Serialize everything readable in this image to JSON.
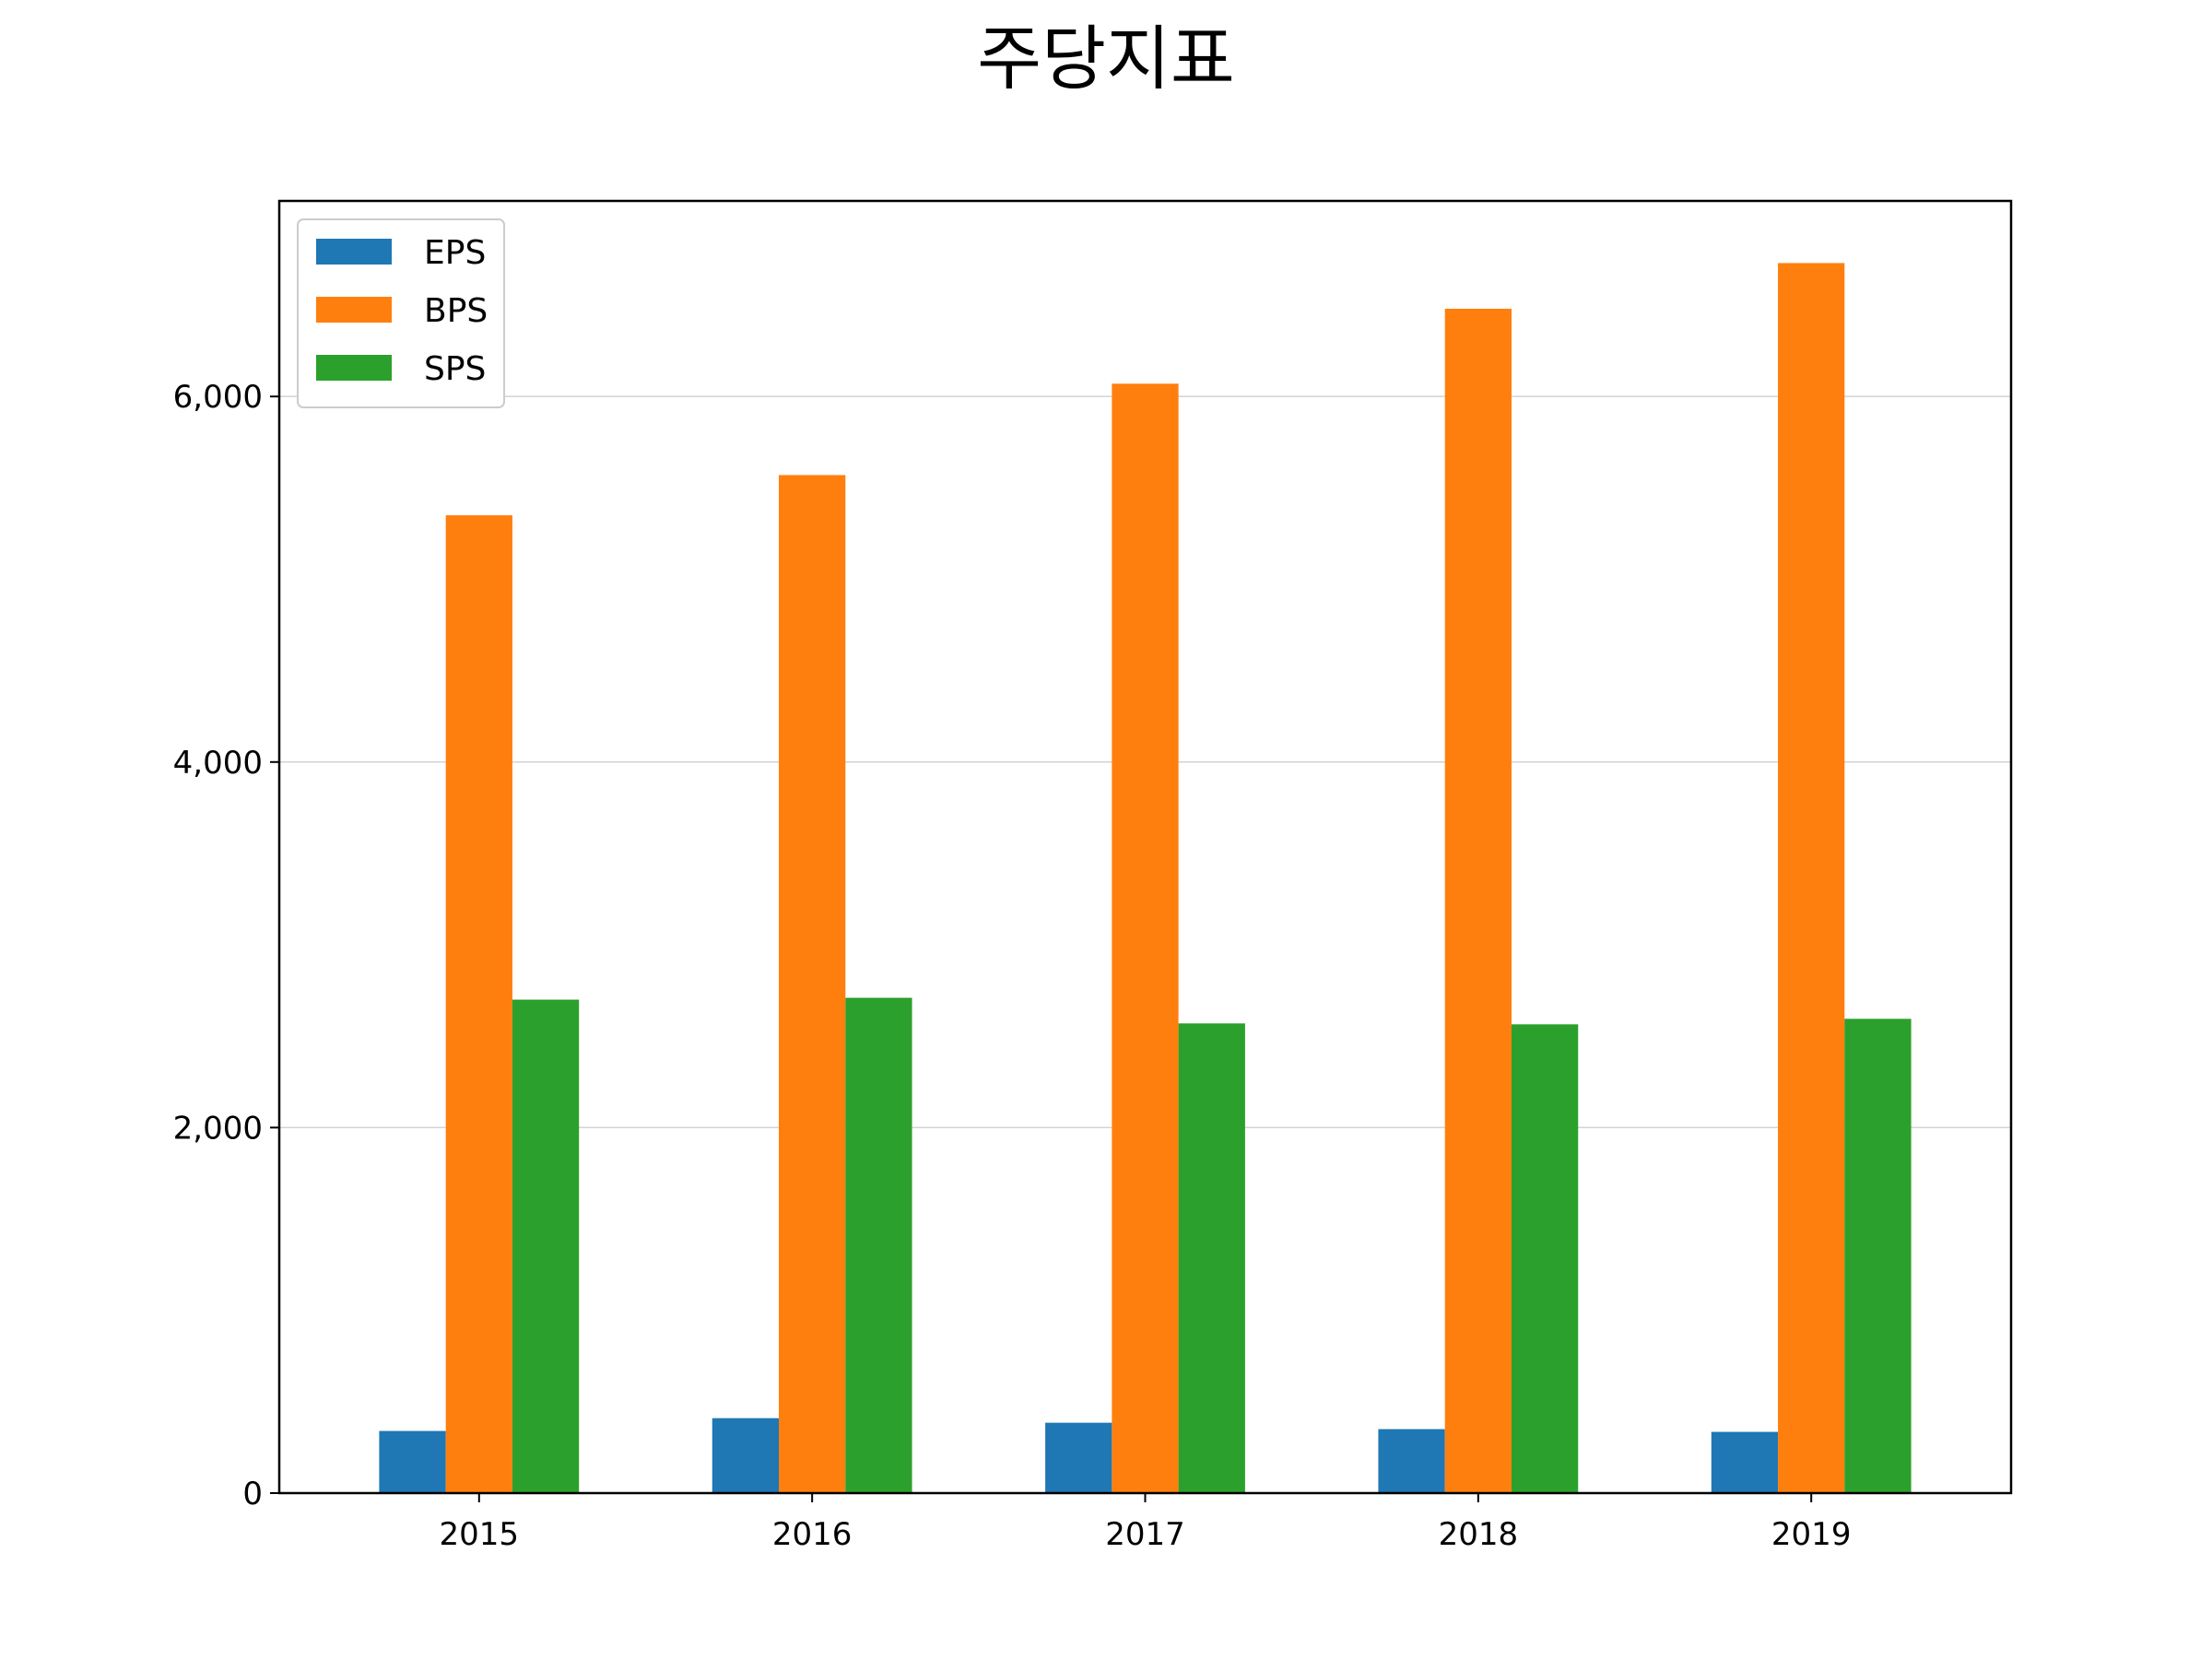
{
  "chart_data": {
    "type": "bar",
    "title": "주당지표",
    "xlabel": "",
    "ylabel": "",
    "categories": [
      "2015",
      "2016",
      "2017",
      "2018",
      "2019"
    ],
    "series": [
      {
        "name": "EPS",
        "color": "#1f77b4",
        "values": [
          340,
          410,
          385,
          350,
          335
        ]
      },
      {
        "name": "BPS",
        "color": "#ff7f0e",
        "values": [
          5350,
          5570,
          6070,
          6480,
          6730
        ]
      },
      {
        "name": "SPS",
        "color": "#2ca02c",
        "values": [
          2700,
          2710,
          2570,
          2565,
          2595
        ]
      }
    ],
    "ylim": [
      0,
      7070
    ],
    "yticks": [
      0,
      2000,
      4000,
      6000
    ],
    "ytick_labels": [
      "0",
      "2,000",
      "4,000",
      "6,000"
    ],
    "grid": "y",
    "legend_position": "top-left"
  }
}
